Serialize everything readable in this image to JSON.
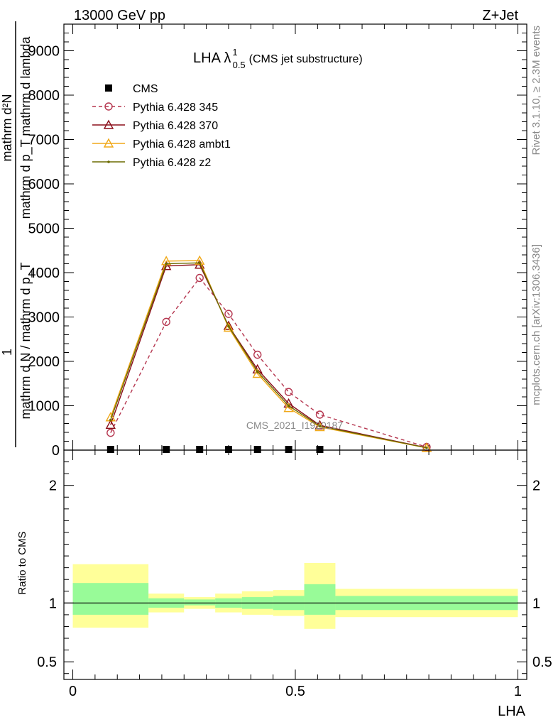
{
  "header": {
    "left": "13000 GeV pp",
    "right": "Z+Jet"
  },
  "side_labels": {
    "right_top": "Rivet 3.1.10, ≥ 2.3M events",
    "right_bottom": "mcplots.cern.ch [arXiv:1306.3436]"
  },
  "watermark": "CMS_2021_I1920187",
  "chart_data": [
    {
      "type": "line",
      "title": "LHA λ",
      "title_sup": "1",
      "title_sub": "0.5",
      "subtitle": "(CMS jet substructure)",
      "ylabel_num": "mathrm d²N",
      "ylabel_den": "mathrm d p_T mathrm d lambda",
      "ylabel_prefix": "1",
      "ylabel_prefix_den": "mathrm d N / mathrm d p_T",
      "ylim": [
        0,
        9600
      ],
      "y_ticks": [
        {
          "value": 0,
          "label": "0"
        },
        {
          "value": 1000,
          "label": "1000"
        },
        {
          "value": 2000,
          "label": "2000"
        },
        {
          "value": 3000,
          "label": "3000"
        },
        {
          "value": 4000,
          "label": "4000"
        },
        {
          "value": 5000,
          "label": "5000"
        },
        {
          "value": 6000,
          "label": "6000"
        },
        {
          "value": 7000,
          "label": "7000"
        },
        {
          "value": 8000,
          "label": "8000"
        },
        {
          "value": 9000,
          "label": "9000"
        }
      ],
      "xlim": [
        -0.02,
        1.02
      ],
      "series": [
        {
          "name": "CMS",
          "color": "#000000",
          "marker": "square",
          "x": [
            0.085,
            0.21,
            0.285,
            0.35,
            0.415,
            0.485,
            0.555
          ],
          "y": [
            0,
            0,
            0,
            0,
            0,
            0,
            0
          ]
        },
        {
          "name": "Pythia 6.428 345",
          "color": "#b5364f",
          "marker": "circle",
          "dashed": true,
          "x": [
            0.085,
            0.21,
            0.285,
            0.35,
            0.415,
            0.485,
            0.555,
            0.795
          ],
          "y": [
            390,
            2890,
            3880,
            3070,
            2150,
            1310,
            800,
            70
          ]
        },
        {
          "name": "Pythia 6.428 370",
          "color": "#8b0e1a",
          "marker": "triangle",
          "x": [
            0.085,
            0.21,
            0.285,
            0.35,
            0.415,
            0.485,
            0.555,
            0.795
          ],
          "y": [
            570,
            4150,
            4180,
            2800,
            1820,
            1050,
            560,
            55
          ]
        },
        {
          "name": "Pythia 6.428 ambt1",
          "color": "#f0a818",
          "marker": "triangle",
          "x": [
            0.085,
            0.21,
            0.285,
            0.35,
            0.415,
            0.485,
            0.555,
            0.795
          ],
          "y": [
            740,
            4260,
            4270,
            2760,
            1720,
            950,
            520,
            50
          ]
        },
        {
          "name": "Pythia 6.428 z2",
          "color": "#6b6b00",
          "marker": "dot",
          "x": [
            0.085,
            0.21,
            0.285,
            0.35,
            0.415,
            0.485,
            0.555,
            0.795
          ],
          "y": [
            680,
            4200,
            4220,
            2790,
            1770,
            1000,
            540,
            52
          ]
        }
      ]
    },
    {
      "type": "area",
      "ylabel": "Ratio to CMS",
      "xlabel": "LHA",
      "ylim": [
        0.35,
        2.3
      ],
      "xlim": [
        -0.02,
        1.02
      ],
      "y_ticks": [
        {
          "value": 0.5,
          "label": "0.5"
        },
        {
          "value": 1,
          "label": "1"
        },
        {
          "value": 2,
          "label": "2"
        }
      ],
      "x_ticks": [
        {
          "value": 0,
          "label": "0"
        },
        {
          "value": 0.5,
          "label": "0.5"
        },
        {
          "value": 1,
          "label": "1"
        }
      ],
      "bands": [
        {
          "x0": 0.0,
          "x1": 0.17,
          "stat_lo": 0.9,
          "stat_hi": 1.17,
          "tot_lo": 0.79,
          "tot_hi": 1.33
        },
        {
          "x0": 0.17,
          "x1": 0.25,
          "stat_lo": 0.96,
          "stat_hi": 1.04,
          "tot_lo": 0.92,
          "tot_hi": 1.08
        },
        {
          "x0": 0.25,
          "x1": 0.32,
          "stat_lo": 0.98,
          "stat_hi": 1.03,
          "tot_lo": 0.95,
          "tot_hi": 1.05
        },
        {
          "x0": 0.32,
          "x1": 0.38,
          "stat_lo": 0.96,
          "stat_hi": 1.04,
          "tot_lo": 0.92,
          "tot_hi": 1.08
        },
        {
          "x0": 0.38,
          "x1": 0.45,
          "stat_lo": 0.95,
          "stat_hi": 1.05,
          "tot_lo": 0.9,
          "tot_hi": 1.1
        },
        {
          "x0": 0.45,
          "x1": 0.52,
          "stat_lo": 0.94,
          "stat_hi": 1.06,
          "tot_lo": 0.89,
          "tot_hi": 1.11
        },
        {
          "x0": 0.52,
          "x1": 0.59,
          "stat_lo": 0.9,
          "stat_hi": 1.16,
          "tot_lo": 0.78,
          "tot_hi": 1.34
        },
        {
          "x0": 0.59,
          "x1": 1.0,
          "stat_lo": 0.94,
          "stat_hi": 1.06,
          "tot_lo": 0.88,
          "tot_hi": 1.12
        }
      ],
      "colors": {
        "stat": "#98fb98",
        "total": "#ffff99",
        "line": "#000000"
      }
    }
  ]
}
